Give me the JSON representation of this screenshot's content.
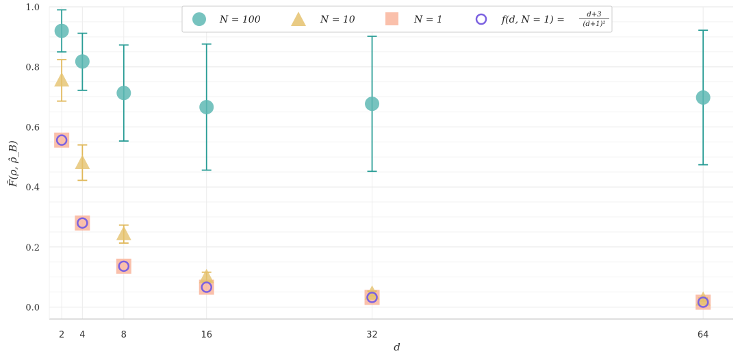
{
  "chart_data": {
    "type": "scatter",
    "xlabel": "d",
    "ylabel": "F̄(ρ, ρ̂_B)",
    "x_ticks": [
      2,
      4,
      8,
      16,
      32,
      64
    ],
    "y_ticks": [
      "0.0",
      "0.2",
      "0.4",
      "0.6",
      "0.8",
      "1.0"
    ],
    "ylim": [
      0.0,
      1.0
    ],
    "grid": true,
    "legend_position": "top-center",
    "series": [
      {
        "name": "N = 100",
        "marker": "circle",
        "color": "#5fb9b4",
        "errorbar_color": "#2a9d96",
        "points": [
          {
            "x": 2,
            "y": 0.92,
            "lo": 0.85,
            "hi": 0.99
          },
          {
            "x": 4,
            "y": 0.818,
            "lo": 0.722,
            "hi": 0.912
          },
          {
            "x": 8,
            "y": 0.713,
            "lo": 0.553,
            "hi": 0.873
          },
          {
            "x": 16,
            "y": 0.666,
            "lo": 0.456,
            "hi": 0.876
          },
          {
            "x": 32,
            "y": 0.677,
            "lo": 0.452,
            "hi": 0.902
          },
          {
            "x": 64,
            "y": 0.698,
            "lo": 0.474,
            "hi": 0.922
          }
        ]
      },
      {
        "name": "N = 10",
        "marker": "triangle",
        "color": "#e5c26e",
        "errorbar_color": "#e0b85a",
        "points": [
          {
            "x": 2,
            "y": 0.755,
            "lo": 0.686,
            "hi": 0.824
          },
          {
            "x": 4,
            "y": 0.48,
            "lo": 0.422,
            "hi": 0.54
          },
          {
            "x": 8,
            "y": 0.243,
            "lo": 0.213,
            "hi": 0.273
          },
          {
            "x": 16,
            "y": 0.1,
            "lo": 0.084,
            "hi": 0.116
          },
          {
            "x": 32,
            "y": 0.045,
            "lo": 0.037,
            "hi": 0.053
          },
          {
            "x": 64,
            "y": 0.025,
            "lo": 0.02,
            "hi": 0.03
          }
        ]
      },
      {
        "name": "N = 1",
        "marker": "square",
        "color": "#f9b59c",
        "points": [
          {
            "x": 2,
            "y": 0.556
          },
          {
            "x": 4,
            "y": 0.28
          },
          {
            "x": 8,
            "y": 0.136
          },
          {
            "x": 16,
            "y": 0.066
          },
          {
            "x": 32,
            "y": 0.032
          },
          {
            "x": 64,
            "y": 0.016
          }
        ]
      },
      {
        "name": "f(d, N = 1) = (d+3)/(d+1)^2",
        "marker": "open-circle",
        "color": "#7b61e0",
        "points": [
          {
            "x": 2,
            "y": 0.556
          },
          {
            "x": 4,
            "y": 0.28
          },
          {
            "x": 8,
            "y": 0.136
          },
          {
            "x": 16,
            "y": 0.066
          },
          {
            "x": 32,
            "y": 0.032
          },
          {
            "x": 64,
            "y": 0.016
          }
        ]
      }
    ],
    "legend": {
      "labels": [
        "N = 100",
        "N = 10",
        "N = 1"
      ],
      "f_label_prefix": "f(d, N = 1) = ",
      "f_label_numerator": "d+3",
      "f_label_denominator": "(d+1)²"
    }
  }
}
